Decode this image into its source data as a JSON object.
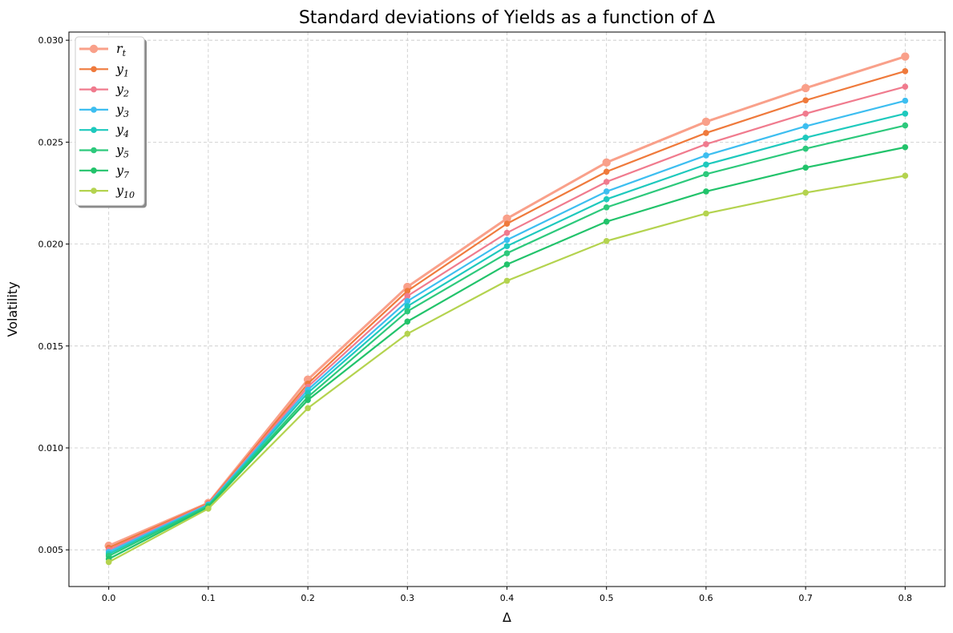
{
  "chart_data": {
    "type": "line",
    "title": "Standard deviations of Yields as a function of Δ",
    "xlabel": "Δ",
    "ylabel": "Volatility",
    "x": [
      0.0,
      0.1,
      0.2,
      0.3,
      0.4,
      0.5,
      0.6,
      0.7,
      0.8
    ],
    "x_ticks": [
      "0.0",
      "0.1",
      "0.2",
      "0.3",
      "0.4",
      "0.5",
      "0.6",
      "0.7",
      "0.8"
    ],
    "y_ticks": [
      "0.005",
      "0.010",
      "0.015",
      "0.020",
      "0.025",
      "0.030"
    ],
    "y_tick_values": [
      0.005,
      0.01,
      0.015,
      0.02,
      0.025,
      0.03
    ],
    "xlim": [
      -0.04,
      0.84
    ],
    "ylim": [
      0.0032,
      0.0304
    ],
    "grid": true,
    "legend_position": "upper-left",
    "series": [
      {
        "name": "r",
        "sub": "t",
        "color": "#f9a08a",
        "values": [
          0.0052,
          0.0073,
          0.01335,
          0.0179,
          0.02125,
          0.024,
          0.026,
          0.02765,
          0.0292
        ]
      },
      {
        "name": "y",
        "sub": "1",
        "color": "#ef7a3c",
        "values": [
          0.0051,
          0.00728,
          0.01315,
          0.0177,
          0.021,
          0.02355,
          0.02545,
          0.02705,
          0.02848
        ]
      },
      {
        "name": "y",
        "sub": "2",
        "color": "#f07b8e",
        "values": [
          0.005,
          0.00725,
          0.013,
          0.01745,
          0.02055,
          0.02305,
          0.0249,
          0.0264,
          0.02772
        ]
      },
      {
        "name": "y",
        "sub": "3",
        "color": "#3dbef0",
        "values": [
          0.0049,
          0.00722,
          0.01285,
          0.0172,
          0.0202,
          0.02258,
          0.02435,
          0.02578,
          0.02703
        ]
      },
      {
        "name": "y",
        "sub": "4",
        "color": "#1ec9bd",
        "values": [
          0.0048,
          0.00718,
          0.0127,
          0.01695,
          0.0199,
          0.0222,
          0.0239,
          0.02522,
          0.0264
        ]
      },
      {
        "name": "y",
        "sub": "5",
        "color": "#2dc97c",
        "values": [
          0.0047,
          0.00715,
          0.0125,
          0.0167,
          0.01955,
          0.0218,
          0.02343,
          0.02468,
          0.02582
        ]
      },
      {
        "name": "y",
        "sub": "7",
        "color": "#22c36b",
        "values": [
          0.00455,
          0.0071,
          0.01235,
          0.0162,
          0.019,
          0.0211,
          0.02258,
          0.02375,
          0.02475
        ]
      },
      {
        "name": "y",
        "sub": "10",
        "color": "#b4d34f",
        "values": [
          0.0044,
          0.00702,
          0.01195,
          0.0156,
          0.0182,
          0.02015,
          0.0215,
          0.02252,
          0.02335
        ]
      }
    ]
  }
}
